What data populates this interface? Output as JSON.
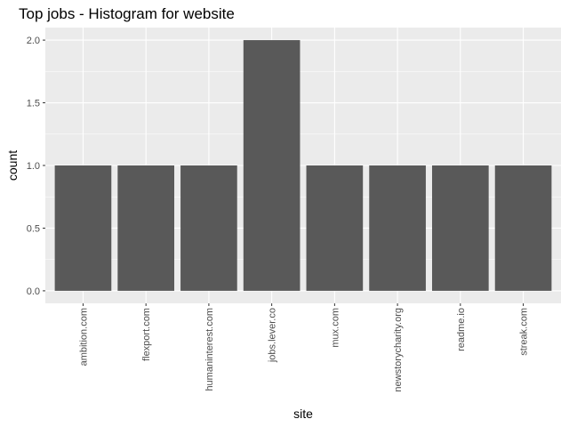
{
  "chart_data": {
    "type": "bar",
    "title": "Top jobs - Histogram for website",
    "xlabel": "site",
    "ylabel": "count",
    "categories": [
      "ambition.com",
      "flexport.com",
      "humaninterest.com",
      "jobs.lever.co",
      "mux.com",
      "newstorycharity.org",
      "readme.io",
      "streak.com"
    ],
    "values": [
      1,
      1,
      1,
      2,
      1,
      1,
      1,
      1
    ],
    "ylim": [
      -0.1,
      2.1
    ],
    "yticks": [
      0.0,
      0.5,
      1.0,
      1.5,
      2.0
    ],
    "ytick_labels": [
      "0.0",
      "0.5",
      "1.0",
      "1.5",
      "2.0"
    ],
    "grid": true,
    "colors": {
      "panel": "#ebebeb",
      "bar": "#595959",
      "grid": "#ffffff",
      "tick_text": "#4d4d4d"
    }
  }
}
